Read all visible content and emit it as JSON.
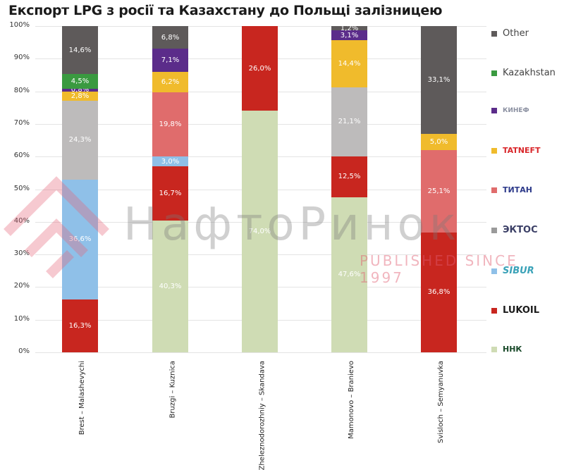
{
  "title": "Експорт LPG з росії та Казахстану до Польщі залізницею",
  "watermark": {
    "text": "НафтоРинок",
    "subtext": "PUBLISHED SINCE 1997"
  },
  "chart_data": {
    "type": "bar",
    "stacked": true,
    "normalized_100": true,
    "title": "Експорт LPG з росії та Казахстану до Польщі залізницею",
    "xlabel": "",
    "ylabel": "",
    "ylim": [
      0,
      100
    ],
    "y_ticks": [
      "0%",
      "10%",
      "20%",
      "30%",
      "40%",
      "50%",
      "60%",
      "70%",
      "80%",
      "90%",
      "100%"
    ],
    "categories": [
      "Brest – Malashevychi",
      "Bruzgi – Kuznica",
      "Zheleznodorozhniy – Skandava",
      "Mamonovo – Branievo",
      "Svisloch – Semyanuvka"
    ],
    "series": [
      {
        "name": "ННК",
        "color": "#cfdcb4",
        "values": [
          0,
          40.3,
          74.0,
          47.6,
          0
        ]
      },
      {
        "name": "LUKOIL",
        "color": "#c8261f",
        "values": [
          16.3,
          16.7,
          26.0,
          12.5,
          36.8
        ]
      },
      {
        "name": "SIBUR",
        "color": "#8fc0e8",
        "values": [
          36.6,
          3.0,
          0,
          0,
          0
        ]
      },
      {
        "name": "ЭКТОС",
        "color": "#bdbbbb",
        "values": [
          24.3,
          0,
          0,
          21.1,
          0
        ]
      },
      {
        "name": "ТИТАН",
        "color": "#e06c6c",
        "values": [
          0,
          19.8,
          0,
          0,
          25.1
        ]
      },
      {
        "name": "TATNEFT",
        "color": "#f0bb2c",
        "values": [
          2.8,
          6.2,
          0,
          14.4,
          5.0
        ]
      },
      {
        "name": "КИНЕФ",
        "color": "#5b2c8a",
        "values": [
          0.8,
          7.1,
          0,
          3.1,
          0
        ]
      },
      {
        "name": "Kazakhstan",
        "color": "#3a9a40",
        "values": [
          4.5,
          0,
          0,
          0,
          0
        ]
      },
      {
        "name": "Other",
        "color": "#5e5a5a",
        "values": [
          14.6,
          6.8,
          0,
          1.2,
          33.1
        ]
      }
    ],
    "data_labels": {
      "Brest – Malashevychi": [
        "16,3%",
        "36,6%",
        "24,3%",
        "2,8%",
        "0,8%",
        "4,5%",
        "14,6%"
      ],
      "Bruzgi – Kuznica": [
        "40,3%",
        "16,7%",
        "3,0%",
        "19,8%",
        "6,2%",
        "7,1%",
        "6,8%"
      ],
      "Zheleznodorozhniy – Skandava": [
        "74,0%",
        "26,0%"
      ],
      "Mamonovo – Branievo": [
        "47,6%",
        "12,5%",
        "21,1%",
        "14,4%",
        "3,1%",
        "1,2%"
      ],
      "Svisloch – Semyanuvka": [
        "36,8%",
        "25,1%",
        "5,0%",
        "33,1%"
      ]
    },
    "legend": [
      "Other",
      "Kazakhstan",
      "КИНЕФ",
      "TATNEFT",
      "ТИТАН",
      "ЭКТОС",
      "SIBUR",
      "LUKOIL",
      "ННК"
    ],
    "legend_position": "right",
    "grid": true
  },
  "legend": [
    {
      "label": "Other",
      "color": "#5e5a5a",
      "type": "text"
    },
    {
      "label": "Kazakhstan",
      "color": "#3a9a40",
      "type": "text"
    },
    {
      "label": "КИНЕФ",
      "color": "#5b2c8a",
      "type": "logo"
    },
    {
      "label": "TATNEFT",
      "color": "#f0bb2c",
      "type": "logo"
    },
    {
      "label": "ТИТАН",
      "color": "#e06c6c",
      "type": "logo"
    },
    {
      "label": "ЭКТОС",
      "color": "#9a9a9a",
      "type": "logo"
    },
    {
      "label": "SIBUR",
      "color": "#8fc0e8",
      "type": "logo"
    },
    {
      "label": "LUKOIL",
      "color": "#c8261f",
      "type": "logo"
    },
    {
      "label": "ННК",
      "color": "#cfdcb4",
      "type": "logo"
    }
  ]
}
